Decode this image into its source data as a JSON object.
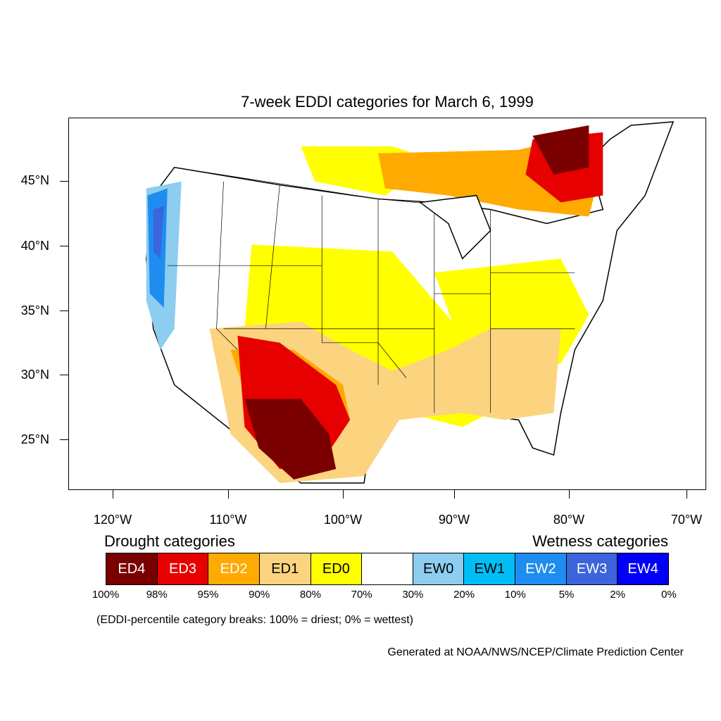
{
  "title": "7-week EDDI categories for March 6, 1999",
  "axes": {
    "lat_labels": [
      "45°N",
      "40°N",
      "35°N",
      "30°N",
      "25°N"
    ],
    "lon_labels": [
      "120°W",
      "110°W",
      "100°W",
      "90°W",
      "80°W",
      "70°W"
    ]
  },
  "legend": {
    "drought_label": "Drought categories",
    "wetness_label": "Wetness categories",
    "categories": [
      {
        "label": "ED4",
        "color": "#7a0000",
        "text_color": "#ffffff"
      },
      {
        "label": "ED3",
        "color": "#e60000",
        "text_color": "#ffffff"
      },
      {
        "label": "ED2",
        "color": "#ffaa00",
        "text_color": "#ffffff"
      },
      {
        "label": "ED1",
        "color": "#fcd37f",
        "text_color": "#000000"
      },
      {
        "label": "ED0",
        "color": "#ffff00",
        "text_color": "#000000"
      },
      {
        "label": "",
        "color": "#ffffff",
        "text_color": "#000000"
      },
      {
        "label": "EW0",
        "color": "#8ccdf0",
        "text_color": "#000000"
      },
      {
        "label": "EW1",
        "color": "#00bef5",
        "text_color": "#000000"
      },
      {
        "label": "EW2",
        "color": "#1e8cf0",
        "text_color": "#ffffff"
      },
      {
        "label": "EW3",
        "color": "#3c64dc",
        "text_color": "#ffffff"
      },
      {
        "label": "EW4",
        "color": "#0000f5",
        "text_color": "#ffffff"
      }
    ],
    "breaks": [
      "100%",
      "98%",
      "95%",
      "90%",
      "80%",
      "70%",
      "30%",
      "20%",
      "10%",
      "5%",
      "2%",
      "0%"
    ]
  },
  "note": "(EDDI-percentile category breaks: 100% = driest; 0% = wettest)",
  "credit": "Generated at NOAA/NWS/NCEP/Climate Prediction Center"
}
